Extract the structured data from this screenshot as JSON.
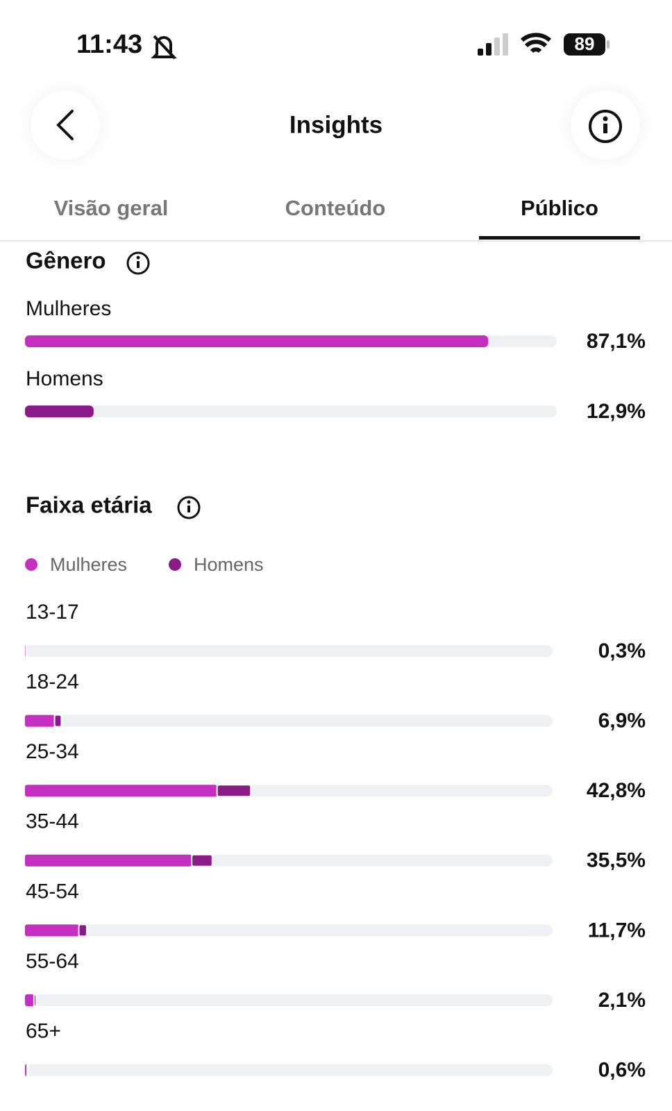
{
  "status_bar": {
    "time": "11:43",
    "battery": "89"
  },
  "header": {
    "title": "Insights"
  },
  "tabs": [
    "Visão geral",
    "Conteúdo",
    "Público"
  ],
  "active_tab": 2,
  "gender": {
    "title": "Gênero",
    "xlim": [
      0,
      100
    ],
    "rows": [
      {
        "label": "Mulheres",
        "value": 87.1,
        "value_label": "87,1%",
        "color": "#c42fc0"
      },
      {
        "label": "Homens",
        "value": 12.9,
        "value_label": "12,9%",
        "color": "#8a1a86"
      }
    ]
  },
  "age": {
    "title": "Faixa etária",
    "xlim": [
      0,
      100
    ],
    "legend": [
      {
        "name": "Mulheres",
        "color": "#c42fc0"
      },
      {
        "name": "Homens",
        "color": "#8a1a86"
      }
    ],
    "rows": [
      {
        "label": "13-17",
        "value": 0.3,
        "value_label": "0,3%",
        "women": 0.2,
        "men": 0.1
      },
      {
        "label": "18-24",
        "value": 6.9,
        "value_label": "6,9%",
        "women": 5.6,
        "men": 1.3
      },
      {
        "label": "25-34",
        "value": 42.8,
        "value_label": "42,8%",
        "women": 36.4,
        "men": 6.4
      },
      {
        "label": "35-44",
        "value": 35.5,
        "value_label": "35,5%",
        "women": 31.6,
        "men": 3.9
      },
      {
        "label": "45-54",
        "value": 11.7,
        "value_label": "11,7%",
        "women": 10.2,
        "men": 1.5
      },
      {
        "label": "55-64",
        "value": 2.1,
        "value_label": "2,1%",
        "women": 1.7,
        "men": 0.4
      },
      {
        "label": "65+",
        "value": 0.6,
        "value_label": "0,6%",
        "women": 0.4,
        "men": 0.2
      }
    ]
  }
}
